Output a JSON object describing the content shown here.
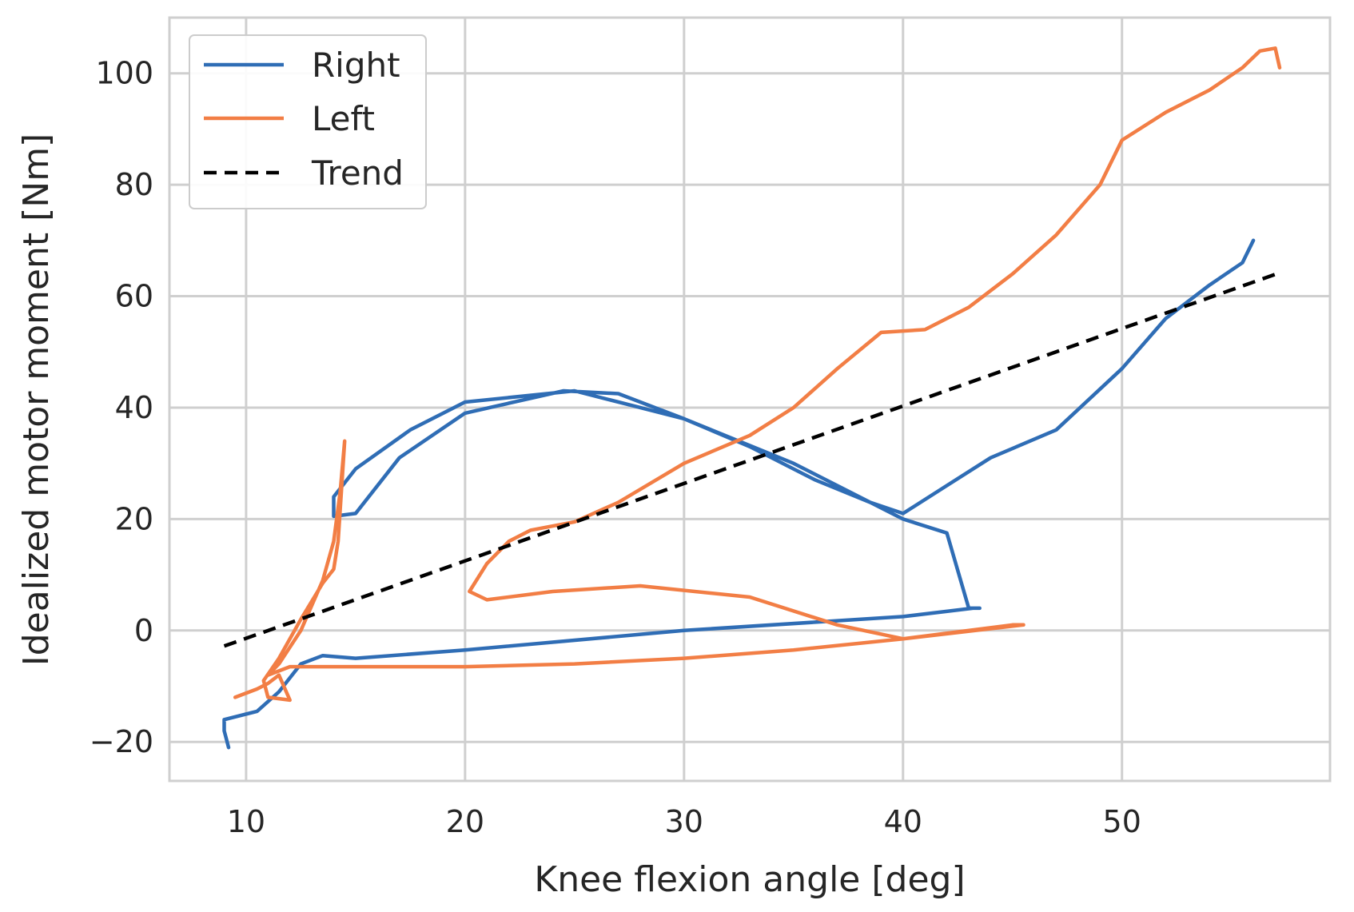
{
  "chart_data": {
    "type": "line",
    "title": "",
    "xlabel": "Knee flexion angle [deg]",
    "ylabel": "Idealized motor moment [Nm]",
    "xlim": [
      6.5,
      59.5
    ],
    "ylim": [
      -27,
      110
    ],
    "xticks": [
      10,
      20,
      30,
      40,
      50
    ],
    "yticks": [
      -20,
      0,
      20,
      40,
      60,
      80,
      100
    ],
    "xtick_labels": [
      "10",
      "20",
      "30",
      "40",
      "50"
    ],
    "ytick_labels": [
      "−20",
      "0",
      "20",
      "40",
      "60",
      "80",
      "100"
    ],
    "grid": true,
    "legend_position": "top-left",
    "series": [
      {
        "name": "Right",
        "color": "#2f6db5",
        "style": "solid",
        "x": [
          9.2,
          9.0,
          9.0,
          10.5,
          11.5,
          12.5,
          13.5,
          15.0,
          20.0,
          30.0,
          40.0,
          43.2,
          43.5,
          43.0,
          42.0,
          40.0,
          38.0,
          35.0,
          30.0,
          25.0,
          20.0,
          17.5,
          15.0,
          14.0,
          14.0,
          15.0,
          17.0,
          20.0,
          24.5,
          27.0,
          30.0,
          33.0,
          36.0,
          38.5,
          40.0,
          42.0,
          44.0,
          47.0,
          50.0,
          52.0,
          54.0,
          55.5,
          56.0
        ],
        "y": [
          -21,
          -18,
          -16,
          -14.5,
          -11,
          -6,
          -4.5,
          -5,
          -3.5,
          0,
          2.5,
          4,
          4,
          4,
          17.5,
          20,
          24,
          30,
          38,
          43,
          41,
          36,
          29,
          24,
          20.5,
          21,
          31,
          39,
          43,
          42.5,
          38,
          33,
          27,
          23,
          21,
          26,
          31,
          36,
          47,
          56,
          62,
          66,
          70
        ]
      },
      {
        "name": "Left",
        "color": "#f27e45",
        "style": "solid",
        "x": [
          9.5,
          10.5,
          11.0,
          11.5,
          12.0,
          11.0,
          10.8,
          11.5,
          12.5,
          13.5,
          14.0,
          14.2,
          14.5,
          14.3,
          14.0,
          13.5,
          12.5,
          11.5,
          11.0,
          12.0,
          15.0,
          20.0,
          25.0,
          30.0,
          35.0,
          40.0,
          45.5,
          45.0,
          40.0,
          37.0,
          33.0,
          28.0,
          24.0,
          21.0,
          20.2,
          21.0,
          22.0,
          23.0,
          25.0,
          27.0,
          30.0,
          33.0,
          35.0,
          37.0,
          39.0,
          41.0,
          43.0,
          45.0,
          47.0,
          49.0,
          50.0,
          52.0,
          54.0,
          55.5,
          56.3,
          57.0,
          57.2
        ],
        "y": [
          -12,
          -10.5,
          -9.5,
          -8,
          -12.5,
          -12,
          -9,
          -5,
          2,
          8.5,
          11,
          16,
          34,
          25,
          16,
          9,
          0,
          -6,
          -8,
          -6.5,
          -6.5,
          -6.5,
          -6,
          -5,
          -3.5,
          -1.5,
          1,
          1,
          -1.5,
          1,
          6,
          8,
          7,
          5.5,
          7,
          12,
          16,
          18,
          19.5,
          23,
          30,
          35,
          40,
          47,
          53.5,
          54,
          58,
          64,
          71,
          80,
          88,
          93,
          97,
          101,
          104,
          104.5,
          101
        ]
      },
      {
        "name": "Trend",
        "color": "#000000",
        "style": "dashed",
        "x": [
          9.0,
          57.2
        ],
        "y": [
          -2.8,
          64.2
        ]
      }
    ]
  }
}
